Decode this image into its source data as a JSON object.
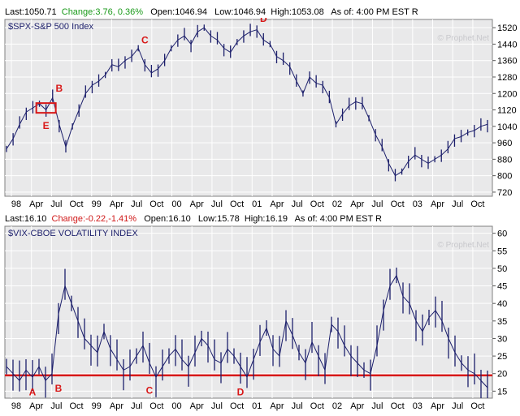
{
  "spx_quote": {
    "last": "Last:1050.71",
    "change": "Change:3.76, 0.36%",
    "open": "Open:1046.94",
    "low": "Low:1046.94",
    "high": "High:1053.08",
    "asof": "As of:  4:00 PM EST R"
  },
  "vix_quote": {
    "last": "Last:16.10",
    "change": "Change:-0.22,-1.41%",
    "open": "Open:16.10",
    "low": "Low:15.78",
    "high": "High:16.19",
    "asof": "As of:  4:00 PM EST R"
  },
  "colors": {
    "panel_bg": "#e9e9ea",
    "bars": "#1c1f6b",
    "marker": "#d81818",
    "positive": "#1a9a1a",
    "negative": "#d01818"
  },
  "chart_data": [
    {
      "type": "line",
      "title": "$SPX-S&P 500 Index",
      "watermark": "© Prophet.Net",
      "x_tick_labels": [
        "98",
        "Apr",
        "Jul",
        "Oct",
        "99",
        "Apr",
        "Jul",
        "Oct",
        "00",
        "Apr",
        "Jul",
        "Oct",
        "01",
        "Apr",
        "Jul",
        "Oct",
        "02",
        "Apr",
        "Jul",
        "Oct",
        "03",
        "Apr",
        "Jul",
        "Oct"
      ],
      "y_tick_labels": [
        "1520",
        "1440",
        "1360",
        "1280",
        "1200",
        "1120",
        "1040",
        "960",
        "880",
        "800",
        "720"
      ],
      "ylim": [
        700,
        1560
      ],
      "grid": true,
      "series": [
        {
          "values": [
            930,
            980,
            1050,
            1110,
            1130,
            1150,
            1120,
            1180,
            1050,
            940,
            1040,
            1120,
            1200,
            1240,
            1260,
            1290,
            1340,
            1330,
            1360,
            1380,
            1420,
            1340,
            1300,
            1320,
            1360,
            1420,
            1460,
            1480,
            1440,
            1500,
            1520,
            1480,
            1460,
            1420,
            1400,
            1450,
            1480,
            1500,
            1510,
            1460,
            1440,
            1380,
            1360,
            1330,
            1260,
            1200,
            1280,
            1250,
            1240,
            1180,
            1050,
            1100,
            1140,
            1160,
            1150,
            1080,
            1000,
            940,
            860,
            800,
            820,
            870,
            900,
            880,
            860,
            880,
            900,
            930,
            980,
            990,
            1010,
            1020,
            1040,
            1050
          ]
        }
      ],
      "annotations": [
        {
          "label": "B",
          "x_index": 8,
          "value": 1186
        },
        {
          "label": "C",
          "x_index": 21,
          "value": 1420
        },
        {
          "label": "D",
          "x_index": 39,
          "value": 1525
        },
        {
          "label": "E",
          "x_index": 6,
          "value": 1090
        }
      ]
    },
    {
      "type": "line",
      "title": "$VIX-CBOE VOLATILITY INDEX",
      "watermark": "© Prophet.Net",
      "x_tick_labels": [
        "98",
        "Apr",
        "Jul",
        "Oct",
        "99",
        "Apr",
        "Jul",
        "Oct",
        "00",
        "Apr",
        "Jul",
        "Oct",
        "01",
        "Apr",
        "Jul",
        "Oct",
        "02",
        "Apr",
        "Jul",
        "Oct",
        "03",
        "Apr",
        "Jul",
        "Oct"
      ],
      "y_tick_labels": [
        "60",
        "55",
        "50",
        "45",
        "40",
        "35",
        "30",
        "25",
        "20",
        "15"
      ],
      "ylim": [
        13,
        62
      ],
      "grid": true,
      "reference_line": 19.5,
      "series": [
        {
          "values": [
            22,
            20,
            18,
            21,
            19,
            22,
            18,
            20,
            37,
            45,
            40,
            35,
            30,
            28,
            26,
            32,
            27,
            24,
            21,
            22,
            25,
            28,
            23,
            19,
            22,
            25,
            27,
            24,
            22,
            26,
            30,
            28,
            24,
            23,
            27,
            25,
            22,
            19,
            24,
            29,
            33,
            27,
            25,
            35,
            31,
            26,
            23,
            29,
            25,
            21,
            34,
            32,
            28,
            25,
            23,
            21,
            20,
            28,
            38,
            45,
            48,
            42,
            40,
            35,
            32,
            36,
            38,
            35,
            30,
            26,
            23,
            21,
            20,
            18,
            16
          ]
        }
      ],
      "annotations": [
        {
          "label": "A",
          "x_index": 4,
          "value": 17.5
        },
        {
          "label": "B",
          "x_index": 8,
          "value": 18.5
        },
        {
          "label": "C",
          "x_index": 22,
          "value": 18.0
        },
        {
          "label": "D",
          "x_index": 36,
          "value": 17.5
        }
      ]
    }
  ]
}
